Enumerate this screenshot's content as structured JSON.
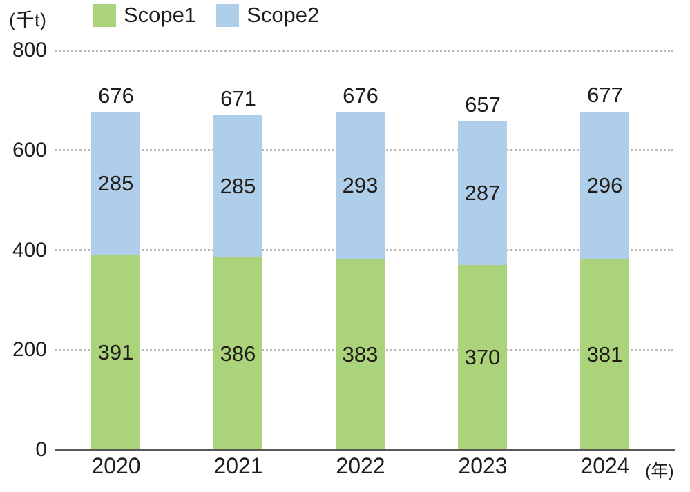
{
  "chart_data": {
    "type": "bar",
    "stacked": true,
    "unit_label": "(千t)",
    "x_unit_label": "(年)",
    "categories": [
      "2020",
      "2021",
      "2022",
      "2023",
      "2024"
    ],
    "series": [
      {
        "name": "Scope1",
        "color": "#abd37c",
        "values": [
          391,
          386,
          383,
          370,
          381
        ]
      },
      {
        "name": "Scope2",
        "color": "#afcee9",
        "values": [
          285,
          285,
          293,
          287,
          296
        ]
      }
    ],
    "totals": [
      676,
      671,
      676,
      657,
      677
    ],
    "ylim": [
      0,
      800
    ],
    "yticks": [
      0,
      200,
      400,
      600,
      800
    ],
    "legend": [
      "Scope1",
      "Scope2"
    ],
    "legend_position": "top-left",
    "grid": "horizontal-dotted",
    "colors": {
      "grid": "#b9b7b7",
      "axis": "#595757",
      "text": "#211c18"
    }
  }
}
